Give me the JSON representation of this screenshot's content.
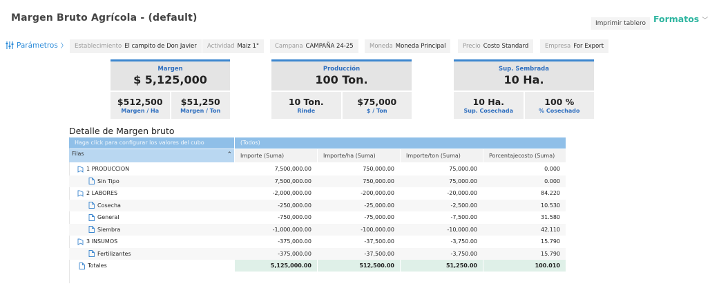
{
  "header": {
    "title": "Margen Bruto Agrícola - (default)",
    "print_label": "Imprimir tablero",
    "formats_label": "Formatos",
    "formats_icon": "chevron-down-icon"
  },
  "params": {
    "button_label": "Parámetros",
    "button_chevron": "〉",
    "chips": [
      {
        "key": "Establecimiento",
        "value": "El campito de Don Javier"
      },
      {
        "key": "Actividad",
        "value": "Maiz 1°"
      },
      {
        "key": "Campana",
        "value": "CAMPAÑA 24-25"
      },
      {
        "key": "Moneda",
        "value": "Moneda Principal"
      },
      {
        "key": "Precio",
        "value": "Costo Standard"
      },
      {
        "key": "Empresa",
        "value": "For Export"
      }
    ]
  },
  "kpis": [
    {
      "label": "Margen",
      "value": "$ 5,125,000",
      "subs": [
        {
          "value": "$512,500",
          "label": "Margen / Ha"
        },
        {
          "value": "$51,250",
          "label": "Margen / Ton"
        }
      ]
    },
    {
      "label": "Producción",
      "value": "100 Ton.",
      "subs": [
        {
          "value": "10 Ton.",
          "label": "Rinde"
        },
        {
          "value": "$75,000",
          "label": "$ / Ton"
        }
      ]
    },
    {
      "label": "Sup. Sembrada",
      "value": "10 Ha.",
      "subs": [
        {
          "value": "10 Ha.",
          "label": "Sup. Cosechada"
        },
        {
          "value": "100 %",
          "label": "% Cosechado"
        }
      ]
    }
  ],
  "detail": {
    "title": "Detalle de Margen bruto",
    "config_hint": "Haga click para configurar los valores del cubo",
    "all_label": "(Todos)",
    "rows_label": "Filas",
    "columns": [
      "Importe (Suma)",
      "Importe/ha (Suma)",
      "Importe/ton (Suma)",
      "Porcentajecosto (Suma)"
    ],
    "rows": [
      {
        "label": "1 PRODUCCION",
        "level": 0,
        "values": [
          "7,500,000.00",
          "750,000.00",
          "75,000.00",
          "0.000"
        ]
      },
      {
        "label": "Sin Tipo",
        "level": 1,
        "values": [
          "7,500,000.00",
          "750,000.00",
          "75,000.00",
          "0.000"
        ]
      },
      {
        "label": "2 LABORES",
        "level": 0,
        "values": [
          "-2,000,000.00",
          "-200,000.00",
          "-20,000.00",
          "84.220"
        ]
      },
      {
        "label": "Cosecha",
        "level": 1,
        "values": [
          "-250,000.00",
          "-25,000.00",
          "-2,500.00",
          "10.530"
        ]
      },
      {
        "label": "General",
        "level": 1,
        "values": [
          "-750,000.00",
          "-75,000.00",
          "-7,500.00",
          "31.580"
        ]
      },
      {
        "label": "Siembra",
        "level": 1,
        "values": [
          "-1,000,000.00",
          "-100,000.00",
          "-10,000.00",
          "42.110"
        ]
      },
      {
        "label": "3 INSUMOS",
        "level": 0,
        "values": [
          "-375,000.00",
          "-37,500.00",
          "-3,750.00",
          "15.790"
        ]
      },
      {
        "label": "Fertilizantes",
        "level": 1,
        "values": [
          "-375,000.00",
          "-37,500.00",
          "-3,750.00",
          "15.790"
        ]
      }
    ],
    "totals": {
      "label": "Totales",
      "values": [
        "5,125,000.00",
        "512,500.00",
        "51,250.00",
        "100.010"
      ]
    }
  },
  "colors": {
    "accent": "#2eb5a0",
    "link": "#2c8bd9",
    "card_border": "#3b86cf",
    "totals_bg": "#dff0e8"
  }
}
